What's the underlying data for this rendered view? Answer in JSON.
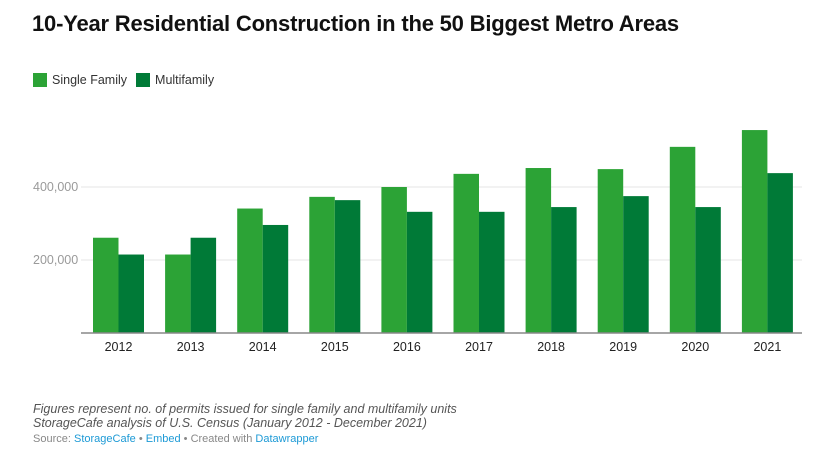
{
  "title": "10-Year Residential Construction in the 50 Biggest Metro Areas",
  "legend": [
    {
      "label": "Single Family",
      "color": "#2ca336"
    },
    {
      "label": "Multifamily",
      "color": "#007a37"
    }
  ],
  "notes": [
    "Figures represent no. of permits issued for single family and multifamily units",
    "StorageCafe analysis of U.S. Census (January 2012 - December 2021)"
  ],
  "source": {
    "prefix": "Source:",
    "source_link": "StorageCafe",
    "sep1": "•",
    "embed_link": "Embed",
    "sep2": "•",
    "created_text": "Created with",
    "datawrapper_link": "Datawrapper"
  },
  "chart_data": {
    "type": "bar",
    "title": "10-Year Residential Construction in the 50 Biggest Metro Areas",
    "xlabel": "",
    "ylabel": "",
    "categories": [
      "2012",
      "2013",
      "2014",
      "2015",
      "2016",
      "2017",
      "2018",
      "2019",
      "2020",
      "2021"
    ],
    "series": [
      {
        "name": "Single Family",
        "color": "#2ca336",
        "values": [
          261000,
          215000,
          341000,
          373000,
          400000,
          436000,
          452000,
          449000,
          510000,
          556000
        ]
      },
      {
        "name": "Multifamily",
        "color": "#007a37",
        "values": [
          215000,
          261000,
          296000,
          364000,
          332000,
          332000,
          345000,
          375000,
          345000,
          438000
        ]
      }
    ],
    "yticks": [
      200000,
      400000
    ],
    "ytick_labels": [
      "200,000",
      "400,000"
    ],
    "ylim": [
      0,
      620000
    ],
    "grid": true,
    "legend_position": "top-left"
  }
}
